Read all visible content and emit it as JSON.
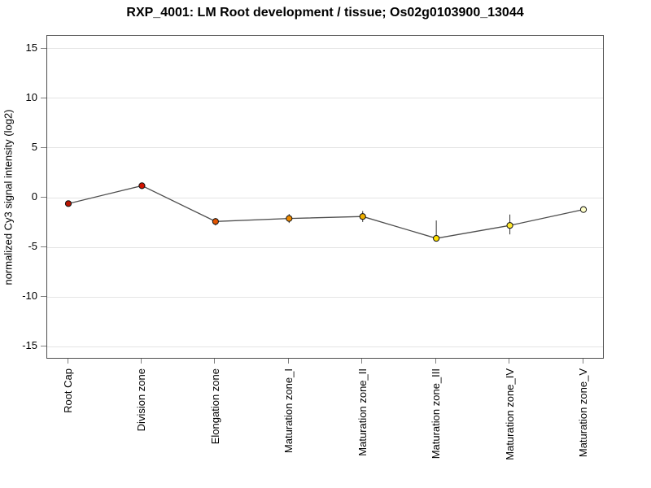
{
  "chart_data": {
    "type": "line",
    "title": "RXP_4001: LM Root development / tissue; Os02g0103900_13044",
    "xlabel": "",
    "ylabel": "normalized Cy3 signal intensity (log2)",
    "ylim": [
      -16.3,
      16.3
    ],
    "y_ticks": [
      15,
      10,
      5,
      0,
      -5,
      -10,
      -15
    ],
    "grid": true,
    "legend": "none",
    "categories": [
      "Root Cap",
      "Division zone",
      "Elongation zone",
      "Maturation zone_I",
      "Maturation zone_II",
      "Maturation zone_III",
      "Maturation zone_IV",
      "Maturation zone_V"
    ],
    "series": [
      {
        "name": "normalized Cy3 signal intensity (log2)",
        "values": [
          -0.6,
          1.2,
          -2.4,
          -2.1,
          -1.9,
          -4.1,
          -2.8,
          -1.2
        ],
        "error_up": [
          0.3,
          0.15,
          0.35,
          0.45,
          0.55,
          1.8,
          1.1,
          0
        ],
        "error_down": [
          0.3,
          0.15,
          0.4,
          0.45,
          0.55,
          0.3,
          0.9,
          0
        ],
        "point_colors": [
          "#b81400",
          "#d21300",
          "#e25400",
          "#ef8a00",
          "#f0b000",
          "#ffe000",
          "#ffe82e",
          "#ffffc8"
        ],
        "line_color": "#4d4d4d",
        "error_bar_color": "#333333",
        "point_outline_color": "#111111",
        "gridline_color": "#e4e4e4",
        "tick_color": "#808080"
      }
    ]
  }
}
